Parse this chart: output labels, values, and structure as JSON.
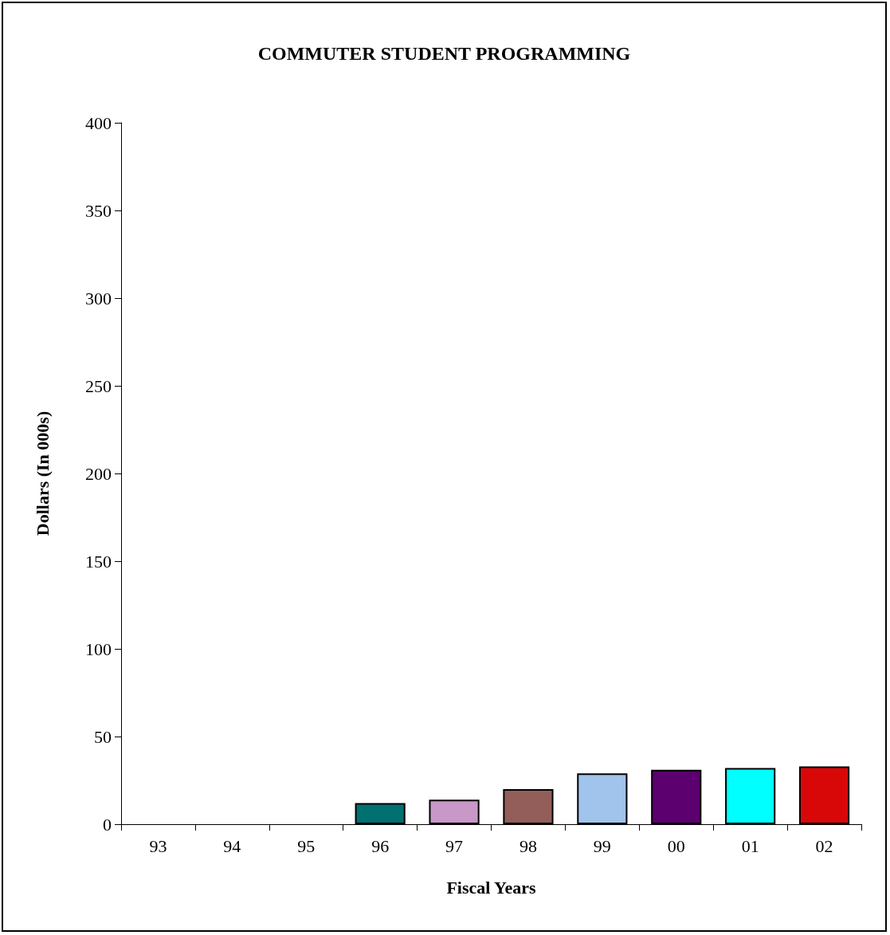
{
  "chart_data": {
    "type": "bar",
    "title": "COMMUTER STUDENT PROGRAMMING",
    "xlabel": "Fiscal Years",
    "ylabel": "Dollars (In 000s)",
    "categories": [
      "93",
      "94",
      "95",
      "96",
      "97",
      "98",
      "99",
      "00",
      "01",
      "02"
    ],
    "values": [
      null,
      null,
      null,
      12,
      14,
      20,
      29,
      31,
      32,
      33
    ],
    "colors": [
      "#008080",
      "#008080",
      "#008080",
      "#007070",
      "#c898c8",
      "#935e5a",
      "#a0c4ec",
      "#5c0070",
      "#00ffff",
      "#d80808"
    ],
    "ylim": [
      0,
      400
    ],
    "yticks": [
      0,
      50,
      100,
      150,
      200,
      250,
      300,
      350,
      400
    ],
    "grid": false
  }
}
